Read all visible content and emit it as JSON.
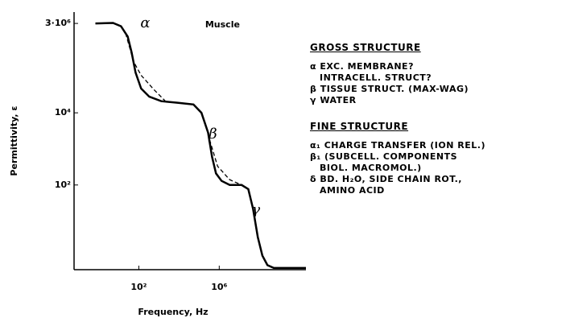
{
  "chart_data": {
    "type": "line",
    "xlabel": "Frequency, Hz",
    "ylabel": "Permittivity, ε",
    "log_x": true,
    "log_y": true,
    "xlim": [
      0.06,
      130000000000
    ],
    "ylim": [
      0.45,
      8000000
    ],
    "xticks": [
      {
        "value": 100,
        "label": "10²"
      },
      {
        "value": 1000000,
        "label": "10⁶"
      }
    ],
    "yticks": [
      {
        "value": 3000000,
        "label": "3·10⁶"
      },
      {
        "value": 10000,
        "label": "10⁴"
      },
      {
        "value": 100,
        "label": "10²"
      }
    ],
    "annotations": [
      {
        "text": "α",
        "x": 120,
        "y": 3000000
      },
      {
        "text": "Muscle",
        "x": 200000,
        "y": 2700000
      },
      {
        "text": "β",
        "x": 300000,
        "y": 2500
      },
      {
        "text": "γ",
        "x": 40000000,
        "y": 20
      }
    ],
    "series": [
      {
        "color": "#000000",
        "dash": false,
        "x": [
          0.69,
          5.2,
          13,
          28,
          44,
          69,
          130,
          330,
          1300,
          8300,
          52000,
          130000,
          280000,
          440000,
          690000,
          1300000,
          3300000,
          13000000,
          28000000,
          48000000,
          83000000,
          140000000,
          250000000,
          520000000,
          1300000000,
          33000000000
        ],
        "values": [
          3000000,
          3100000,
          2500000,
          1300000,
          470000,
          130000,
          47000,
          28000,
          21000,
          19000,
          17000,
          10000,
          2800,
          600,
          210,
          130,
          100,
          100,
          77,
          22,
          3.6,
          1.1,
          0.6,
          0.5,
          0.5,
          0.5
        ]
      },
      {
        "color": "#000000",
        "dash": true,
        "x": [
          22,
          55,
          130,
          520,
          2100
        ],
        "values": [
          1600000,
          260000,
          110000,
          46000,
          21000
        ]
      },
      {
        "color": "#000000",
        "dash": true,
        "x": [
          330000,
          830000,
          3300000,
          13000000
        ],
        "values": [
          1800,
          330,
          140,
          100
        ]
      }
    ]
  },
  "notes": {
    "sections": [
      {
        "heading": "GROSS STRUCTURE",
        "items": [
          [
            "α EXC. MEMBRANE?",
            "INTRACELL. STRUCT?"
          ],
          [
            "β TISSUE STRUCT. (MAX-WAG)"
          ],
          [
            "γ WATER"
          ]
        ]
      },
      {
        "heading": "FINE STRUCTURE",
        "items": [
          [
            "α₁ CHARGE TRANSFER (ION REL.)"
          ],
          [
            "β₁ (SUBCELL. COMPONENTS",
            "BIOL. MACROMOL.)"
          ],
          [
            "δ BD. H₂O, SIDE CHAIN ROT.,",
            "AMINO ACID"
          ]
        ]
      }
    ]
  }
}
